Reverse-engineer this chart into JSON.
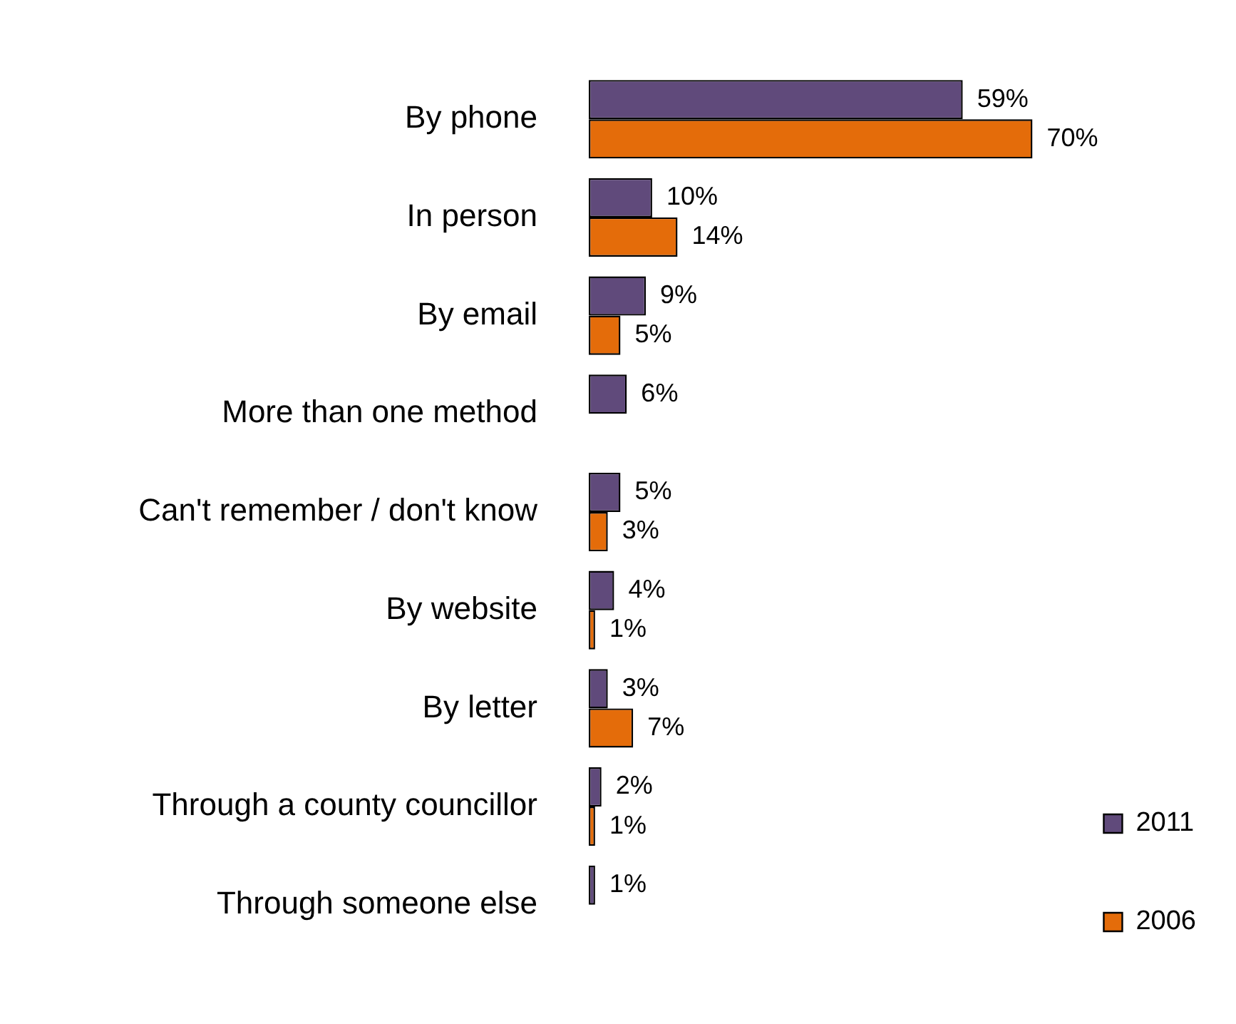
{
  "chart_data": {
    "type": "bar",
    "orientation": "horizontal",
    "categories": [
      "By phone",
      "In person",
      "By email",
      "More than one method",
      "Can't remember / don't know",
      "By website",
      "By letter",
      "Through a county councillor",
      "Through someone else"
    ],
    "series": [
      {
        "name": "2011",
        "color": "#604a7b",
        "values": [
          59,
          10,
          9,
          6,
          5,
          4,
          3,
          2,
          1
        ],
        "value_labels": [
          "59%",
          "10%",
          "9%",
          "6%",
          "5%",
          "4%",
          "3%",
          "2%",
          "1%"
        ]
      },
      {
        "name": "2006",
        "color": "#e46c0a",
        "values": [
          70,
          14,
          5,
          null,
          3,
          1,
          7,
          1,
          null
        ],
        "value_labels": [
          "70%",
          "14%",
          "5%",
          null,
          "3%",
          "1%",
          "7%",
          "1%",
          null
        ]
      }
    ],
    "legend": "bottom right",
    "tick_labels": "y"
  }
}
